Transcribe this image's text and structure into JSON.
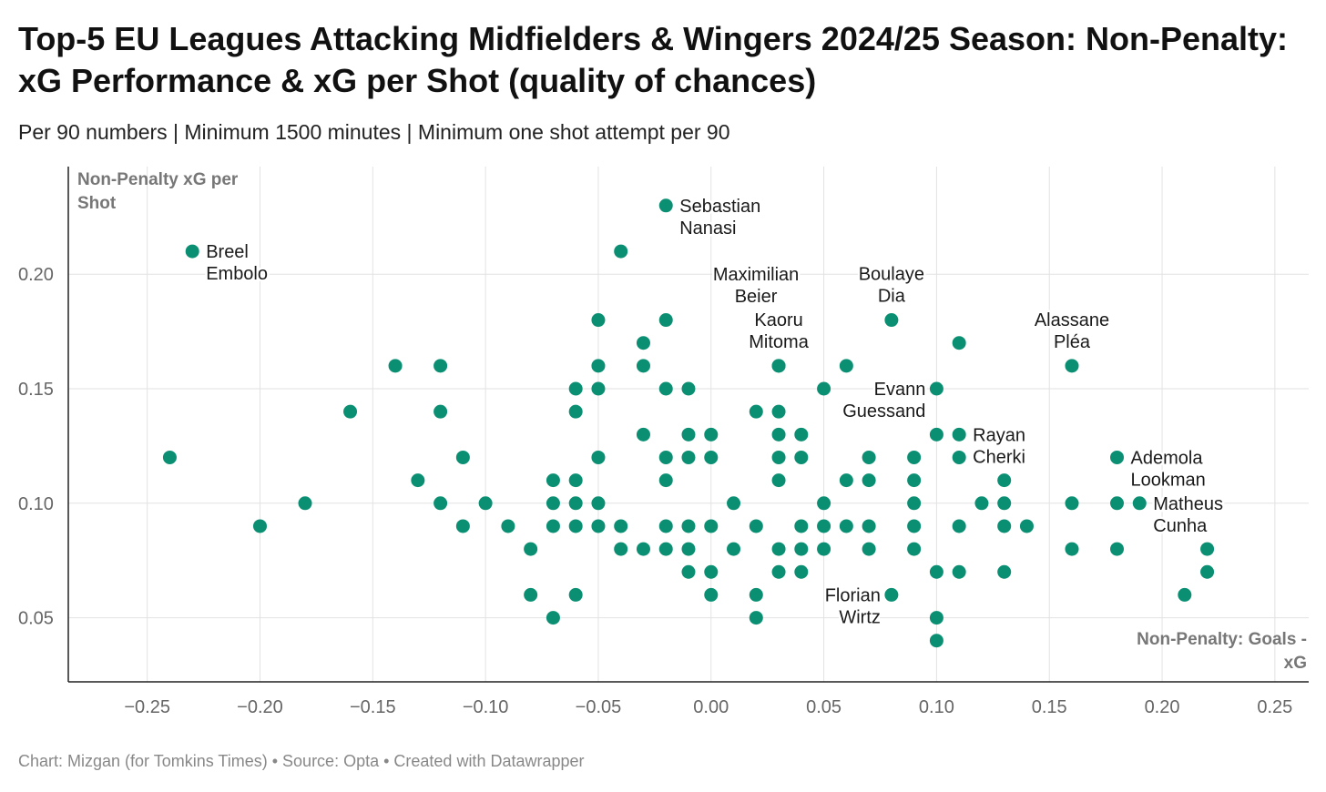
{
  "title": "Top-5 EU Leagues Attacking Midfielders & Wingers 2024/25 Season: Non-Penalty: xG Performance & xG per Shot (quality of chances)",
  "subtitle": "Per 90 numbers | Minimum 1500 minutes | Minimum one shot attempt per 90",
  "footer": "Chart: Mizgan (for Tomkins Times) • Source: Opta • Created with Datawrapper",
  "colors": {
    "point": "#0a8f72",
    "grid": "#e2e2e2",
    "axis": "#222222"
  },
  "chart_data": {
    "type": "scatter",
    "xlabel": "Non-Penalty: Goals - xG",
    "ylabel": "Non-Penalty xG per Shot",
    "xlim": [
      -0.285,
      0.265
    ],
    "ylim": [
      0.022,
      0.247
    ],
    "xticks": [
      -0.25,
      -0.2,
      -0.15,
      -0.1,
      -0.05,
      0.0,
      0.05,
      0.1,
      0.15,
      0.2,
      0.25
    ],
    "xtick_labels": [
      "−0.25",
      "−0.20",
      "−0.15",
      "−0.10",
      "−0.05",
      "0.00",
      "0.05",
      "0.10",
      "0.15",
      "0.20",
      "0.25"
    ],
    "yticks": [
      0.05,
      0.1,
      0.15,
      0.2
    ],
    "ytick_labels": [
      "0.05",
      "0.10",
      "0.15",
      "0.20"
    ],
    "grid": true,
    "points": [
      [
        -0.24,
        0.12
      ],
      [
        -0.2,
        0.09
      ],
      [
        -0.18,
        0.1
      ],
      [
        -0.16,
        0.14
      ],
      [
        -0.14,
        0.16
      ],
      [
        -0.13,
        0.11
      ],
      [
        -0.12,
        0.16
      ],
      [
        -0.12,
        0.14
      ],
      [
        -0.12,
        0.1
      ],
      [
        -0.11,
        0.12
      ],
      [
        -0.11,
        0.09
      ],
      [
        -0.1,
        0.1
      ],
      [
        -0.09,
        0.09
      ],
      [
        -0.08,
        0.08
      ],
      [
        -0.08,
        0.06
      ],
      [
        -0.07,
        0.11
      ],
      [
        -0.07,
        0.1
      ],
      [
        -0.07,
        0.09
      ],
      [
        -0.07,
        0.05
      ],
      [
        -0.06,
        0.15
      ],
      [
        -0.06,
        0.14
      ],
      [
        -0.06,
        0.11
      ],
      [
        -0.06,
        0.1
      ],
      [
        -0.06,
        0.09
      ],
      [
        -0.06,
        0.06
      ],
      [
        -0.05,
        0.18
      ],
      [
        -0.05,
        0.16
      ],
      [
        -0.05,
        0.15
      ],
      [
        -0.05,
        0.12
      ],
      [
        -0.05,
        0.1
      ],
      [
        -0.05,
        0.09
      ],
      [
        -0.04,
        0.21
      ],
      [
        -0.04,
        0.09
      ],
      [
        -0.04,
        0.08
      ],
      [
        -0.03,
        0.17
      ],
      [
        -0.03,
        0.16
      ],
      [
        -0.03,
        0.13
      ],
      [
        -0.03,
        0.08
      ],
      [
        -0.02,
        0.18
      ],
      [
        -0.02,
        0.15
      ],
      [
        -0.02,
        0.12
      ],
      [
        -0.02,
        0.11
      ],
      [
        -0.02,
        0.09
      ],
      [
        -0.02,
        0.08
      ],
      [
        -0.01,
        0.15
      ],
      [
        -0.01,
        0.13
      ],
      [
        -0.01,
        0.12
      ],
      [
        -0.01,
        0.09
      ],
      [
        -0.01,
        0.08
      ],
      [
        -0.01,
        0.07
      ],
      [
        0.0,
        0.13
      ],
      [
        0.0,
        0.12
      ],
      [
        0.0,
        0.09
      ],
      [
        0.0,
        0.07
      ],
      [
        0.0,
        0.06
      ],
      [
        0.01,
        0.1
      ],
      [
        0.01,
        0.08
      ],
      [
        0.02,
        0.14
      ],
      [
        0.02,
        0.09
      ],
      [
        0.02,
        0.06
      ],
      [
        0.02,
        0.05
      ],
      [
        0.03,
        0.14
      ],
      [
        0.03,
        0.13
      ],
      [
        0.03,
        0.12
      ],
      [
        0.03,
        0.11
      ],
      [
        0.03,
        0.08
      ],
      [
        0.03,
        0.07
      ],
      [
        0.04,
        0.13
      ],
      [
        0.04,
        0.12
      ],
      [
        0.04,
        0.09
      ],
      [
        0.04,
        0.08
      ],
      [
        0.04,
        0.07
      ],
      [
        0.05,
        0.15
      ],
      [
        0.05,
        0.1
      ],
      [
        0.05,
        0.09
      ],
      [
        0.05,
        0.08
      ],
      [
        0.06,
        0.16
      ],
      [
        0.06,
        0.11
      ],
      [
        0.06,
        0.09
      ],
      [
        0.07,
        0.12
      ],
      [
        0.07,
        0.11
      ],
      [
        0.07,
        0.09
      ],
      [
        0.07,
        0.08
      ],
      [
        0.09,
        0.12
      ],
      [
        0.09,
        0.11
      ],
      [
        0.09,
        0.1
      ],
      [
        0.09,
        0.09
      ],
      [
        0.09,
        0.08
      ],
      [
        0.1,
        0.13
      ],
      [
        0.1,
        0.07
      ],
      [
        0.1,
        0.05
      ],
      [
        0.1,
        0.04
      ],
      [
        0.11,
        0.17
      ],
      [
        0.11,
        0.12
      ],
      [
        0.11,
        0.09
      ],
      [
        0.11,
        0.07
      ],
      [
        0.12,
        0.1
      ],
      [
        0.13,
        0.11
      ],
      [
        0.13,
        0.1
      ],
      [
        0.13,
        0.09
      ],
      [
        0.13,
        0.07
      ],
      [
        0.14,
        0.09
      ],
      [
        0.16,
        0.1
      ],
      [
        0.16,
        0.08
      ],
      [
        0.18,
        0.1
      ],
      [
        0.18,
        0.08
      ],
      [
        0.22,
        0.08
      ],
      [
        0.22,
        0.07
      ]
    ],
    "labeled_points": [
      {
        "name": "Breel Embolo",
        "lines": [
          "Breel",
          "Embolo"
        ],
        "x": -0.23,
        "y": 0.21,
        "anchor": "start"
      },
      {
        "name": "Sebastian Nanasi",
        "lines": [
          "Sebastian",
          "Nanasi"
        ],
        "x": -0.02,
        "y": 0.23,
        "anchor": "start"
      },
      {
        "name": "Maximilian Beier",
        "lines": [
          "Maximilian",
          "Beier"
        ],
        "x": 0.03,
        "y": 0.16,
        "anchor": "above-center-left"
      },
      {
        "name": "Kaoru Mitoma",
        "lines": [
          "Kaoru",
          "Mitoma"
        ],
        "x": 0.03,
        "y": 0.16,
        "anchor": "above-center"
      },
      {
        "name": "Boulaye Dia",
        "lines": [
          "Boulaye",
          "Dia"
        ],
        "x": 0.08,
        "y": 0.18,
        "anchor": "above-center"
      },
      {
        "name": "Alassane Pléa",
        "lines": [
          "Alassane",
          "Pléa"
        ],
        "x": 0.16,
        "y": 0.16,
        "anchor": "above-center"
      },
      {
        "name": "Evann Guessand",
        "lines": [
          "Evann",
          "Guessand"
        ],
        "x": 0.1,
        "y": 0.15,
        "anchor": "end"
      },
      {
        "name": "Rayan Cherki",
        "lines": [
          "Rayan",
          "Cherki"
        ],
        "x": 0.11,
        "y": 0.13,
        "anchor": "start"
      },
      {
        "name": "Ademola Lookman",
        "lines": [
          "Ademola",
          "Lookman"
        ],
        "x": 0.18,
        "y": 0.12,
        "anchor": "start"
      },
      {
        "name": "Matheus Cunha",
        "lines": [
          "Matheus",
          "Cunha"
        ],
        "x": 0.19,
        "y": 0.1,
        "anchor": "start"
      },
      {
        "name": "Florian Wirtz",
        "lines": [
          "Florian",
          "Wirtz"
        ],
        "x": 0.08,
        "y": 0.06,
        "anchor": "end"
      },
      {
        "name": "unnamed",
        "lines": [],
        "x": 0.21,
        "y": 0.06,
        "anchor": "none"
      }
    ]
  }
}
